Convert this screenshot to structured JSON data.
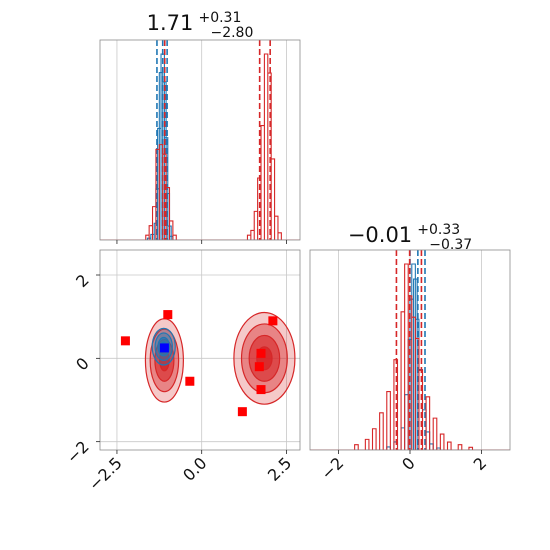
{
  "chart_data": [
    {
      "type": "histogram",
      "panel": "x-marginal",
      "title": {
        "value": "1.71",
        "plus": "+0.31",
        "minus": "−2.80"
      },
      "xlim": [
        -3.0,
        2.9
      ],
      "grid": true,
      "series": [
        {
          "name": "",
          "color": "#1f77b4",
          "bins": [
            [
              -1.55,
              2
            ],
            [
              -1.45,
              6
            ],
            [
              -1.35,
              18
            ],
            [
              -1.3,
              55
            ],
            [
              -1.25,
              120
            ],
            [
              -1.2,
              180
            ],
            [
              -1.15,
              200
            ],
            [
              -1.1,
              170
            ],
            [
              -1.05,
              110
            ],
            [
              -1.0,
              50
            ],
            [
              -0.95,
              15
            ],
            [
              -0.9,
              4
            ]
          ],
          "quantiles": [
            -1.32,
            -1.15,
            -1.02
          ]
        },
        {
          "name": "",
          "color": "#d62728",
          "bins": [
            [
              -1.6,
              2
            ],
            [
              -1.5,
              6
            ],
            [
              -1.4,
              14
            ],
            [
              -1.3,
              38
            ],
            [
              -1.2,
              40
            ],
            [
              -1.1,
              36
            ],
            [
              -1.0,
              22
            ],
            [
              -0.9,
              8
            ],
            [
              -0.8,
              2
            ],
            [
              1.4,
              2
            ],
            [
              1.5,
              4
            ],
            [
              1.6,
              12
            ],
            [
              1.7,
              26
            ],
            [
              1.8,
              48
            ],
            [
              1.9,
              78
            ],
            [
              2.0,
              70
            ],
            [
              2.1,
              34
            ],
            [
              2.2,
              10
            ],
            [
              2.3,
              3
            ]
          ],
          "quantiles": [
            -1.09,
            1.71,
            2.02
          ]
        }
      ]
    },
    {
      "type": "contour-scatter",
      "panel": "joint",
      "xlim": [
        -3.0,
        2.9
      ],
      "ylim": [
        -2.2,
        2.6
      ],
      "xticks": [
        "−2.5",
        "0.0",
        "2.5"
      ],
      "yticks": [
        "−2",
        "0",
        "2"
      ],
      "grid": true,
      "series": [
        {
          "name": "",
          "color": "#d62728",
          "blobs": [
            {
              "cx": -1.1,
              "cy": -0.05,
              "sx": 0.28,
              "sy": 0.5
            },
            {
              "cx": 1.85,
              "cy": 0.0,
              "sx": 0.45,
              "sy": 0.55
            }
          ],
          "markers": [
            [
              -2.25,
              0.42
            ],
            [
              -1.0,
              1.05
            ],
            [
              -0.35,
              -0.55
            ],
            [
              1.2,
              -1.28
            ],
            [
              1.7,
              -0.2
            ],
            [
              1.75,
              0.12
            ],
            [
              1.75,
              -0.75
            ],
            [
              2.1,
              0.9
            ]
          ]
        },
        {
          "name": "",
          "color": "#1f77b4",
          "blobs": [
            {
              "cx": -1.12,
              "cy": 0.28,
              "sx": 0.17,
              "sy": 0.22
            }
          ],
          "markers": [
            [
              -1.1,
              0.25
            ]
          ]
        }
      ]
    },
    {
      "type": "histogram",
      "panel": "y-marginal",
      "title": {
        "value": "−0.01",
        "plus": "+0.33",
        "minus": "−0.37"
      },
      "xlim": [
        -2.8,
        2.8
      ],
      "xticks": [
        "−2",
        "0",
        "2"
      ],
      "grid": true,
      "series": [
        {
          "name": "",
          "color": "#1f77b4",
          "bins": [
            [
              -0.6,
              3
            ],
            [
              -0.4,
              8
            ],
            [
              -0.2,
              22
            ],
            [
              -0.1,
              55
            ],
            [
              0.0,
              110
            ],
            [
              0.05,
              150
            ],
            [
              0.1,
              185
            ],
            [
              0.15,
              170
            ],
            [
              0.2,
              130
            ],
            [
              0.3,
              80
            ],
            [
              0.4,
              40
            ],
            [
              0.5,
              18
            ],
            [
              0.6,
              6
            ],
            [
              0.8,
              2
            ]
          ],
          "quantiles": [
            0.0,
            0.22,
            0.42
          ]
        },
        {
          "name": "",
          "color": "#d62728",
          "bins": [
            [
              -1.5,
              2
            ],
            [
              -1.2,
              4
            ],
            [
              -1.0,
              8
            ],
            [
              -0.8,
              14
            ],
            [
              -0.6,
              22
            ],
            [
              -0.4,
              34
            ],
            [
              -0.2,
              52
            ],
            [
              -0.1,
              70
            ],
            [
              0.0,
              58
            ],
            [
              0.1,
              50
            ],
            [
              0.2,
              42
            ],
            [
              0.3,
              30
            ],
            [
              0.5,
              20
            ],
            [
              0.7,
              12
            ],
            [
              0.9,
              6
            ],
            [
              1.1,
              3
            ],
            [
              1.4,
              2
            ],
            [
              1.7,
              1
            ]
          ],
          "quantiles": [
            -0.38,
            -0.01,
            0.32
          ]
        }
      ]
    }
  ]
}
